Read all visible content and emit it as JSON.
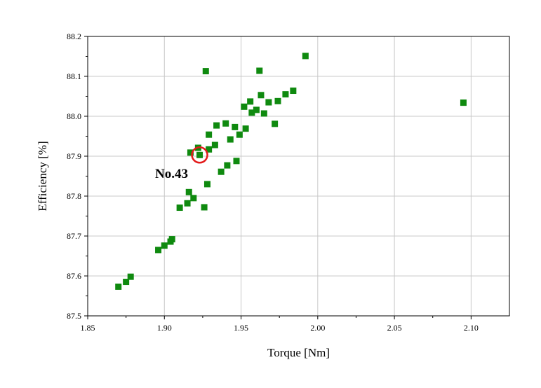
{
  "chart_data": {
    "type": "scatter",
    "title": "",
    "xlabel": "Torque [Nm]",
    "ylabel": "Efficiency [%]",
    "xlim": [
      1.85,
      2.125
    ],
    "ylim": [
      87.5,
      88.2
    ],
    "xticks": [
      1.85,
      1.9,
      1.95,
      2.0,
      2.05,
      2.1
    ],
    "xtick_labels": [
      "1.85",
      "1.90",
      "1.95",
      "2.00",
      "2.05",
      "2.10"
    ],
    "yticks": [
      87.5,
      87.6,
      87.7,
      87.8,
      87.9,
      88.0,
      88.1,
      88.2
    ],
    "ytick_labels": [
      "87.5",
      "87.6",
      "87.7",
      "87.8",
      "87.9",
      "88.0",
      "88.1",
      "88.2"
    ],
    "grid": true,
    "marker": "square",
    "marker_color": "#0f8a0f",
    "points": [
      {
        "x": 1.87,
        "y": 87.573
      },
      {
        "x": 1.875,
        "y": 87.585
      },
      {
        "x": 1.878,
        "y": 87.598
      },
      {
        "x": 1.896,
        "y": 87.665
      },
      {
        "x": 1.9,
        "y": 87.676
      },
      {
        "x": 1.904,
        "y": 87.686
      },
      {
        "x": 1.905,
        "y": 87.692
      },
      {
        "x": 1.91,
        "y": 87.771
      },
      {
        "x": 1.915,
        "y": 87.782
      },
      {
        "x": 1.916,
        "y": 87.81
      },
      {
        "x": 1.919,
        "y": 87.795
      },
      {
        "x": 1.917,
        "y": 87.909
      },
      {
        "x": 1.923,
        "y": 87.903
      },
      {
        "x": 1.922,
        "y": 87.921
      },
      {
        "x": 1.926,
        "y": 87.772
      },
      {
        "x": 1.928,
        "y": 87.83
      },
      {
        "x": 1.927,
        "y": 88.113
      },
      {
        "x": 1.929,
        "y": 87.917
      },
      {
        "x": 1.929,
        "y": 87.954
      },
      {
        "x": 1.933,
        "y": 87.928
      },
      {
        "x": 1.934,
        "y": 87.977
      },
      {
        "x": 1.937,
        "y": 87.861
      },
      {
        "x": 1.94,
        "y": 87.982
      },
      {
        "x": 1.941,
        "y": 87.877
      },
      {
        "x": 1.943,
        "y": 87.942
      },
      {
        "x": 1.946,
        "y": 87.973
      },
      {
        "x": 1.947,
        "y": 87.888
      },
      {
        "x": 1.949,
        "y": 87.954
      },
      {
        "x": 1.952,
        "y": 88.024
      },
      {
        "x": 1.953,
        "y": 87.969
      },
      {
        "x": 1.956,
        "y": 88.037
      },
      {
        "x": 1.957,
        "y": 88.009
      },
      {
        "x": 1.96,
        "y": 88.016
      },
      {
        "x": 1.962,
        "y": 88.114
      },
      {
        "x": 1.963,
        "y": 88.053
      },
      {
        "x": 1.965,
        "y": 88.007
      },
      {
        "x": 1.968,
        "y": 88.035
      },
      {
        "x": 1.972,
        "y": 87.981
      },
      {
        "x": 1.974,
        "y": 88.038
      },
      {
        "x": 1.979,
        "y": 88.055
      },
      {
        "x": 1.984,
        "y": 88.064
      },
      {
        "x": 1.992,
        "y": 88.151
      },
      {
        "x": 2.095,
        "y": 88.034
      }
    ],
    "highlight": {
      "label": "No.43",
      "x": 1.923,
      "y": 87.903,
      "color": "#e31b1b"
    }
  }
}
